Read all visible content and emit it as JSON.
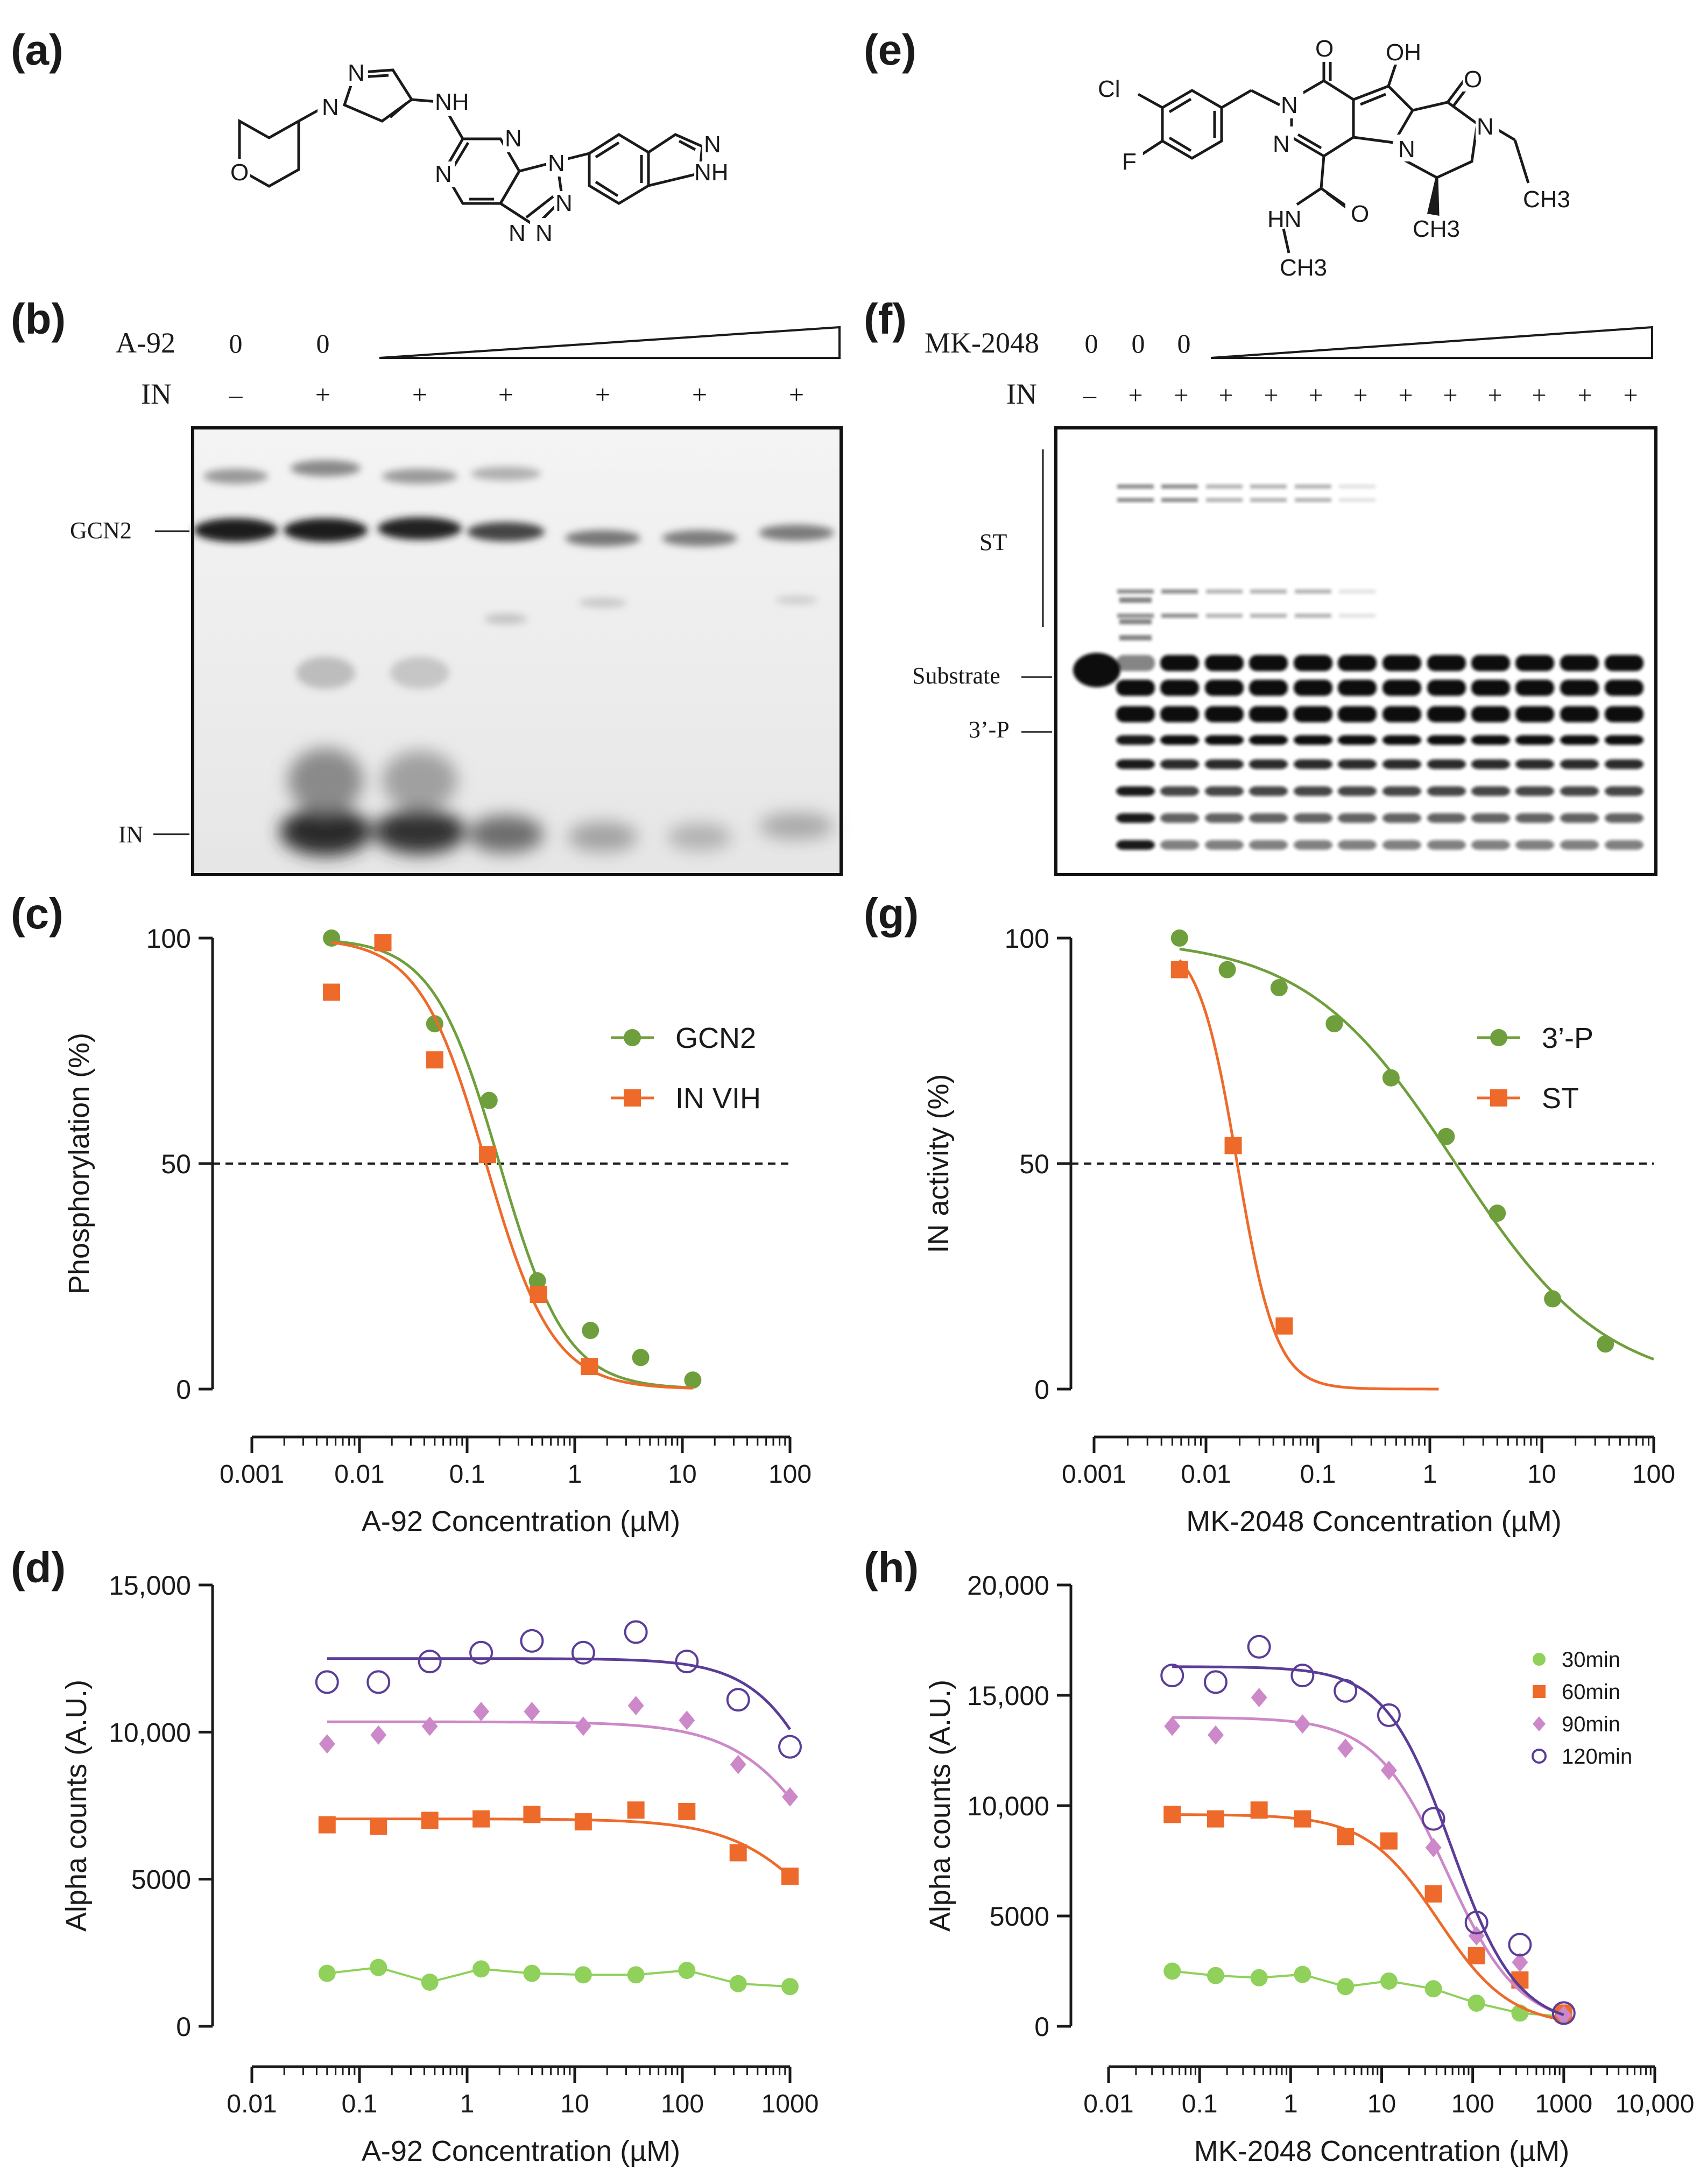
{
  "panels": {
    "a": "(a)",
    "b": "(b)",
    "c": "(c)",
    "d": "(d)",
    "e": "(e)",
    "f": "(f)",
    "g": "(g)",
    "h": "(h)"
  },
  "structure_a": {
    "atoms": {
      "nh_link": "NH",
      "n1": "N",
      "n2": "N",
      "n3": "N",
      "n4": "N",
      "n5": "N",
      "n6": "N",
      "n7": "N",
      "n8": "N",
      "o": "O",
      "n_ind": "N",
      "nh_ind": "NH"
    }
  },
  "structure_e": {
    "atoms": {
      "cl": "Cl",
      "f": "F",
      "o1": "O",
      "o2": "O",
      "o3": "O",
      "oh": "OH",
      "n1": "N",
      "n2": "N",
      "n3": "N",
      "n4": "N",
      "hn": "HN",
      "ch3_amide": "CH3",
      "ch3_ethyl": "CH3",
      "ch3_ring": "CH3"
    }
  },
  "gel_b": {
    "compound": "A-92",
    "enzyme": "IN",
    "lanes_compound": [
      "0",
      "0"
    ],
    "lanes_enzyme": [
      "–",
      "+",
      "+",
      "+",
      "+",
      "+",
      "+"
    ],
    "band_labels": [
      "GCN2",
      "IN"
    ]
  },
  "gel_f": {
    "compound": "MK-2048",
    "enzyme": "IN",
    "lanes_compound": [
      "0",
      "0",
      "0"
    ],
    "lanes_enzyme": [
      "–",
      "+",
      "+",
      "+",
      "+",
      "+",
      "+",
      "+",
      "+",
      "+",
      "+",
      "+",
      "+"
    ],
    "band_labels": [
      "ST",
      "Substrate",
      "3’-P"
    ]
  },
  "chart_data": [
    {
      "panel": "c",
      "type": "scatter",
      "xlabel": "A-92 Concentration (µM)",
      "ylabel": "Phosphorylation (%)",
      "xscale": "log",
      "xlim": [
        0.001,
        100
      ],
      "ylim": [
        0,
        100
      ],
      "x_ticks": [
        "0.001",
        "0.01",
        "0.1",
        "1",
        "10",
        "100"
      ],
      "y_ticks": [
        "0",
        "50",
        "100"
      ],
      "reference_line_y": 50,
      "legend": [
        "GCN2",
        "IN VIH"
      ],
      "series": [
        {
          "name": "GCN2",
          "color": "#6f9f3c",
          "marker": "circle",
          "x": [
            0.0055,
            0.05,
            0.16,
            0.45,
            1.4,
            4.1,
            12.5
          ],
          "y": [
            100,
            81,
            64,
            24,
            13,
            7,
            2
          ],
          "fit": {
            "ic50": 0.2,
            "hill": 1.4,
            "top": 100,
            "bottom": 0,
            "from": 0.0055,
            "to": 12.5
          }
        },
        {
          "name": "IN VIH",
          "color": "#ee6a2b",
          "marker": "square",
          "x": [
            0.0055,
            0.0165,
            0.05,
            0.155,
            0.46,
            1.37
          ],
          "y": [
            88,
            99,
            73,
            52,
            21,
            5
          ],
          "fit": {
            "ic50": 0.15,
            "hill": 1.4,
            "top": 100,
            "bottom": 0,
            "from": 0.0055,
            "to": 12.5
          }
        }
      ]
    },
    {
      "panel": "g",
      "type": "scatter",
      "xlabel": "MK-2048 Concentration (µM)",
      "ylabel": "IN activity (%)",
      "xscale": "log",
      "xlim": [
        0.001,
        100
      ],
      "ylim": [
        0,
        100
      ],
      "x_ticks": [
        "0.001",
        "0.01",
        "0.1",
        "1",
        "10",
        "100"
      ],
      "y_ticks": [
        "0",
        "50",
        "100"
      ],
      "reference_line_y": 50,
      "legend": [
        "3’-P",
        "ST"
      ],
      "series": [
        {
          "name": "3’-P",
          "color": "#6f9f3c",
          "marker": "circle",
          "x": [
            0.0058,
            0.0155,
            0.045,
            0.14,
            0.45,
            1.4,
            4.0,
            12.5,
            37
          ],
          "y": [
            100,
            93,
            89,
            81,
            69,
            56,
            39,
            20,
            10
          ],
          "fit": {
            "ic50": 1.7,
            "hill": 0.65,
            "top": 100,
            "bottom": 0,
            "from": 0.0058,
            "to": 100
          }
        },
        {
          "name": "ST",
          "color": "#ee6a2b",
          "marker": "square",
          "x": [
            0.0058,
            0.0175,
            0.05
          ],
          "y": [
            93,
            54,
            14
          ],
          "fit": {
            "ic50": 0.019,
            "hill": 2.5,
            "top": 100,
            "bottom": 0,
            "from": 0.0058,
            "to": 1.2
          }
        }
      ]
    },
    {
      "panel": "d",
      "type": "scatter",
      "xlabel": "A-92 Concentration (µM)",
      "ylabel": "Alpha counts (A.U.)",
      "xscale": "log",
      "xlim": [
        0.01,
        1000
      ],
      "ylim": [
        0,
        15000
      ],
      "x_ticks": [
        "0.01",
        "0.1",
        "1",
        "10",
        "100",
        "1000"
      ],
      "y_ticks": [
        "0",
        "5000",
        "10,000",
        "15,000"
      ],
      "series": [
        {
          "name": "30min",
          "color": "#8fd15a",
          "marker": "circle",
          "x": [
            0.05,
            0.15,
            0.45,
            1.35,
            4,
            12,
            37,
            110,
            330,
            1000
          ],
          "y": [
            1800,
            2000,
            1500,
            1950,
            1800,
            1750,
            1750,
            1900,
            1450,
            1350
          ],
          "connect": true
        },
        {
          "name": "60min",
          "color": "#ee6a2b",
          "marker": "square",
          "x": [
            0.05,
            0.15,
            0.45,
            1.35,
            4,
            12,
            37,
            110,
            330,
            1000
          ],
          "y": [
            6850,
            6800,
            7000,
            7050,
            7200,
            6950,
            7350,
            7300,
            5900,
            5100
          ],
          "fit": {
            "top": 7050,
            "bottom": 0,
            "ic50": 2600,
            "hill": 1,
            "from": 0.05,
            "to": 1000
          }
        },
        {
          "name": "90min",
          "color": "#cc88c8",
          "marker": "diamond",
          "x": [
            0.05,
            0.15,
            0.45,
            1.35,
            4,
            12,
            37,
            110,
            330,
            1000
          ],
          "y": [
            9600,
            9900,
            10200,
            10700,
            10700,
            10200,
            10900,
            10400,
            8900,
            7800
          ],
          "fit": {
            "top": 10350,
            "bottom": 0,
            "ic50": 3000,
            "hill": 1,
            "from": 0.05,
            "to": 1000
          }
        },
        {
          "name": "120min",
          "color": "#5b3d98",
          "marker": "open-circle",
          "x": [
            0.05,
            0.15,
            0.45,
            1.35,
            4,
            12,
            37,
            110,
            330,
            1000
          ],
          "y": [
            11700,
            11700,
            12400,
            12700,
            13100,
            12700,
            13400,
            12400,
            11100,
            9500
          ],
          "fit": {
            "top": 12500,
            "bottom": 0,
            "ic50": 3300,
            "hill": 1.2,
            "from": 0.05,
            "to": 1000
          }
        }
      ]
    },
    {
      "panel": "h",
      "type": "scatter",
      "xlabel": "MK-2048 Concentration (µM)",
      "ylabel": "Alpha counts (A.U.)",
      "xscale": "log",
      "xlim": [
        0.01,
        10000
      ],
      "ylim": [
        0,
        20000
      ],
      "x_ticks": [
        "0.01",
        "0.1",
        "1",
        "10",
        "100",
        "1000",
        "10,000"
      ],
      "y_ticks": [
        "0",
        "5000",
        "10,000",
        "15,000",
        "20,000"
      ],
      "legend": [
        "30min",
        "60min",
        "90min",
        "120min"
      ],
      "series": [
        {
          "name": "30min",
          "color": "#8fd15a",
          "marker": "circle",
          "x": [
            0.05,
            0.15,
            0.45,
            1.35,
            4,
            12,
            37,
            110,
            330,
            1000
          ],
          "y": [
            2500,
            2300,
            2200,
            2350,
            1800,
            2050,
            1700,
            1050,
            600,
            450
          ],
          "connect": true
        },
        {
          "name": "60min",
          "color": "#ee6a2b",
          "marker": "square",
          "x": [
            0.05,
            0.15,
            0.45,
            1.35,
            4,
            12,
            37,
            110,
            330,
            1000
          ],
          "y": [
            9600,
            9400,
            9800,
            9400,
            8600,
            8400,
            6000,
            3200,
            2100,
            600
          ],
          "fit": {
            "top": 9600,
            "bottom": 0,
            "ic50": 42,
            "hill": 1.1,
            "from": 0.05,
            "to": 1000
          }
        },
        {
          "name": "90min",
          "color": "#cc88c8",
          "marker": "diamond",
          "x": [
            0.05,
            0.15,
            0.45,
            1.35,
            4,
            12,
            37,
            110,
            330,
            1000
          ],
          "y": [
            13600,
            13200,
            14900,
            13700,
            12600,
            11600,
            8100,
            4100,
            2900,
            500
          ],
          "fit": {
            "top": 14000,
            "bottom": 0,
            "ic50": 52,
            "hill": 1.1,
            "from": 0.05,
            "to": 1000
          }
        },
        {
          "name": "120min",
          "color": "#5b3d98",
          "marker": "open-circle",
          "x": [
            0.05,
            0.15,
            0.45,
            1.35,
            4,
            12,
            37,
            110,
            330,
            1000
          ],
          "y": [
            15900,
            15600,
            17200,
            15900,
            15200,
            14100,
            9400,
            4700,
            3700,
            600
          ],
          "fit": {
            "top": 16300,
            "bottom": 0,
            "ic50": 58,
            "hill": 1.2,
            "from": 0.05,
            "to": 1000
          }
        }
      ]
    }
  ]
}
